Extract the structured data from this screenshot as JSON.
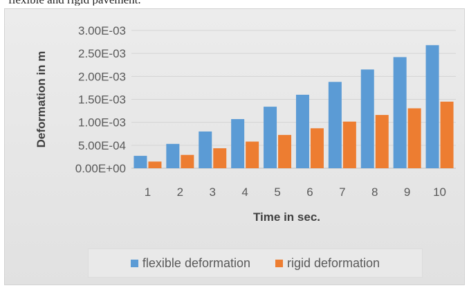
{
  "caption": "flexible and rigid pavement.",
  "chart_data": {
    "type": "bar",
    "title": "",
    "xlabel": "Time in sec.",
    "ylabel": "Deformation in m",
    "categories": [
      "1",
      "2",
      "3",
      "4",
      "5",
      "6",
      "7",
      "8",
      "9",
      "10"
    ],
    "ylim": [
      0,
      0.003
    ],
    "yticks": [
      "0.00E+00",
      "5.00E-04",
      "1.00E-03",
      "1.50E-03",
      "2.00E-03",
      "2.50E-03",
      "3.00E-03"
    ],
    "ytick_values": [
      0,
      0.0005,
      0.001,
      0.0015,
      0.002,
      0.0025,
      0.003
    ],
    "grid": true,
    "legend_position": "bottom",
    "series": [
      {
        "name": "flexible deformation",
        "color": "#5b9bd5",
        "values": [
          0.00027,
          0.00053,
          0.0008,
          0.00107,
          0.00134,
          0.0016,
          0.00188,
          0.00215,
          0.00242,
          0.00268
        ]
      },
      {
        "name": "rigid deformation",
        "color": "#ed7d31",
        "values": [
          0.000145,
          0.00029,
          0.000435,
          0.00058,
          0.000725,
          0.00087,
          0.001015,
          0.00116,
          0.001305,
          0.00145
        ]
      }
    ]
  }
}
